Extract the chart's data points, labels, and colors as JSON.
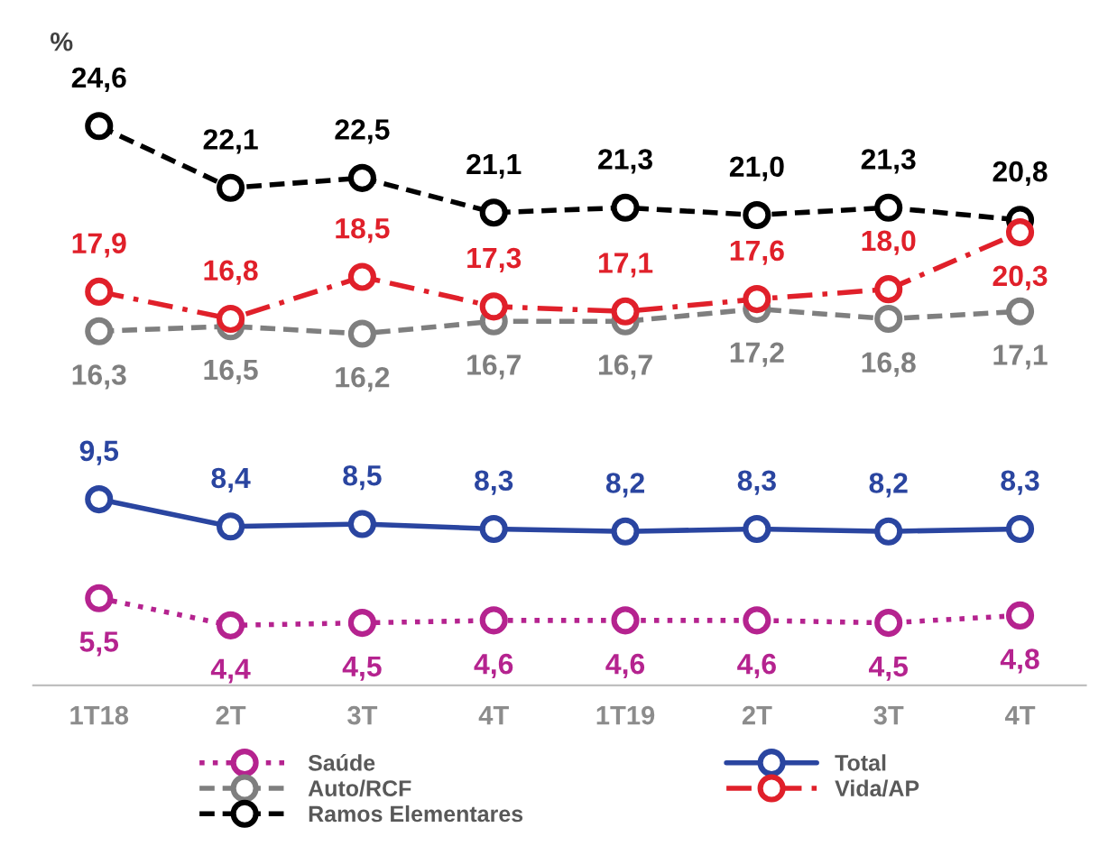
{
  "chart_data": {
    "type": "line",
    "ylabel": "%",
    "categories": [
      "1T18",
      "2T",
      "3T",
      "4T",
      "1T19",
      "2T",
      "3T",
      "4T"
    ],
    "series": [
      {
        "name": "Saúde",
        "color": "#b5238f",
        "line_style": "dotted",
        "values": [
          5.5,
          4.4,
          4.5,
          4.6,
          4.6,
          4.6,
          4.5,
          4.8
        ],
        "value_labels": [
          "5,5",
          "4,4",
          "4,5",
          "4,6",
          "4,6",
          "4,6",
          "4,5",
          "4,8"
        ]
      },
      {
        "name": "Auto/RCF",
        "color": "#7f7f7f",
        "line_style": "dashed",
        "values": [
          16.3,
          16.5,
          16.2,
          16.7,
          16.7,
          17.2,
          16.8,
          17.1
        ],
        "value_labels": [
          "16,3",
          "16,5",
          "16,2",
          "16,7",
          "16,7",
          "17,2",
          "16,8",
          "17,1"
        ]
      },
      {
        "name": "Ramos Elementares",
        "color": "#000000",
        "line_style": "dashed",
        "values": [
          24.6,
          22.1,
          22.5,
          21.1,
          21.3,
          21.0,
          21.3,
          20.8
        ],
        "value_labels": [
          "24,6",
          "22,1",
          "22,5",
          "21,1",
          "21,3",
          "21,0",
          "21,3",
          "20,8"
        ]
      },
      {
        "name": "Total",
        "color": "#2a45a0",
        "line_style": "solid",
        "values": [
          9.5,
          8.4,
          8.5,
          8.3,
          8.2,
          8.3,
          8.2,
          8.3
        ],
        "value_labels": [
          "9,5",
          "8,4",
          "8,5",
          "8,3",
          "8,2",
          "8,3",
          "8,2",
          "8,3"
        ]
      },
      {
        "name": "Vida/AP",
        "color": "#e0202a",
        "line_style": "dashdot",
        "values": [
          17.9,
          16.8,
          18.5,
          17.3,
          17.1,
          17.6,
          18.0,
          20.3
        ],
        "value_labels": [
          "17,9",
          "16,8",
          "18,5",
          "17,3",
          "17,1",
          "17,6",
          "18,0",
          "20,3"
        ]
      }
    ],
    "marker": "circle",
    "grid": false,
    "legend": "bottom"
  }
}
